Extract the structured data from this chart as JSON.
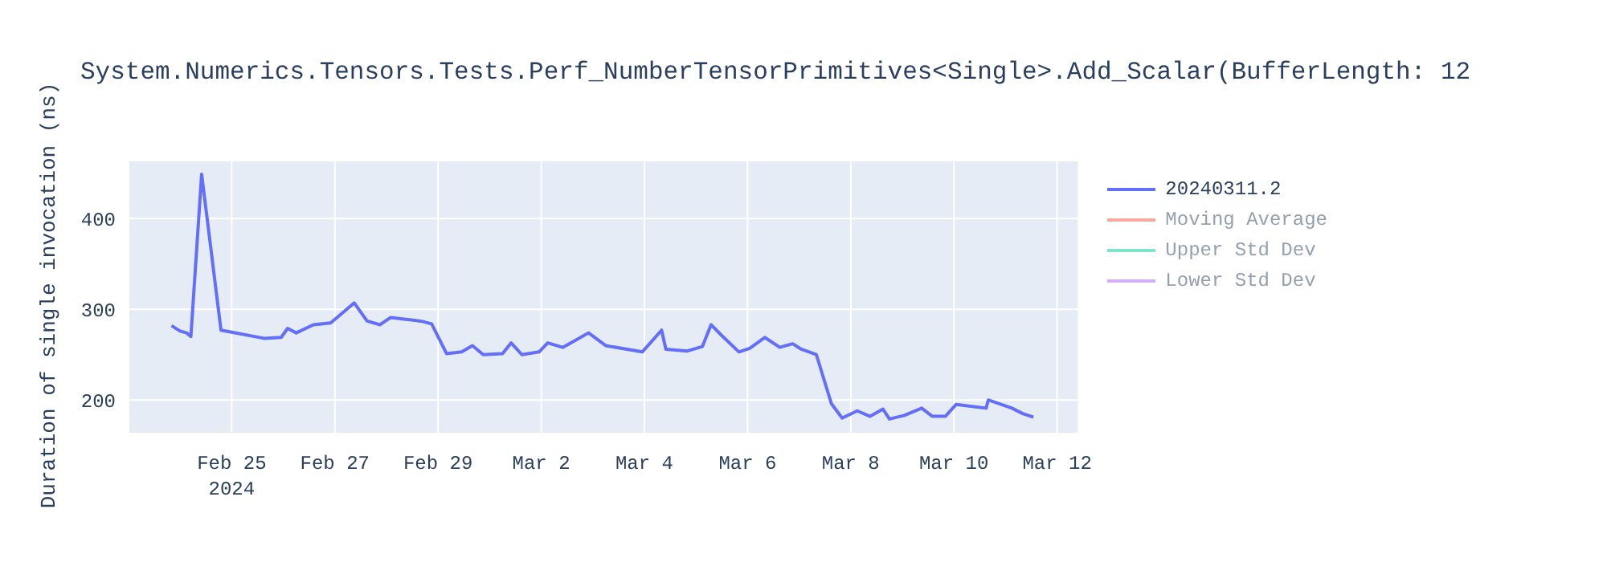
{
  "chart_data": {
    "type": "line",
    "title": "System.Numerics.Tensors.Tests.Perf_NumberTensorPrimitives<Single>.Add_Scalar(BufferLength: 12",
    "ylabel": "Duration of single invocation (ns)",
    "x": [
      "2024-02-23T20:00",
      "2024-02-24T00:00",
      "2024-02-24T03:00",
      "2024-02-24T05:00",
      "2024-02-24T10:00",
      "2024-02-24T19:00",
      "2024-02-25T15:00",
      "2024-02-25T23:00",
      "2024-02-26T02:00",
      "2024-02-26T06:00",
      "2024-02-26T14:00",
      "2024-02-26T22:00",
      "2024-02-27T01:00",
      "2024-02-27T09:00",
      "2024-02-27T15:00",
      "2024-02-27T21:00",
      "2024-02-28T02:00",
      "2024-02-28T09:00",
      "2024-02-28T16:00",
      "2024-02-28T21:00",
      "2024-02-29T04:00",
      "2024-02-29T11:00",
      "2024-02-29T16:00",
      "2024-02-29T21:00",
      "2024-03-01T06:00",
      "2024-03-01T10:00",
      "2024-03-01T15:00",
      "2024-03-01T23:00",
      "2024-03-02T03:00",
      "2024-03-02T10:00",
      "2024-03-02T16:00",
      "2024-03-02T22:00",
      "2024-03-03T06:00",
      "2024-03-03T23:00",
      "2024-03-04T08:00",
      "2024-03-04T10:00",
      "2024-03-04T20:00",
      "2024-03-05T03:00",
      "2024-03-05T07:00",
      "2024-03-05T12:00",
      "2024-03-05T20:00",
      "2024-03-06T01:00",
      "2024-03-06T08:00",
      "2024-03-06T15:00",
      "2024-03-06T21:00",
      "2024-03-07T01:00",
      "2024-03-07T08:00",
      "2024-03-07T15:00",
      "2024-03-07T20:00",
      "2024-03-08T03:00",
      "2024-03-08T09:00",
      "2024-03-08T15:00",
      "2024-03-08T18:00",
      "2024-03-09T01:00",
      "2024-03-09T09:00",
      "2024-03-09T14:00",
      "2024-03-09T20:00",
      "2024-03-10T01:00",
      "2024-03-10T15:00",
      "2024-03-10T16:00",
      "2024-03-11T03:00",
      "2024-03-11T08:00",
      "2024-03-11T13:00"
    ],
    "series": [
      {
        "name": "20240311.2",
        "color": "#636efa",
        "values": [
          282,
          276,
          274,
          270,
          449,
          277,
          268,
          269,
          279,
          274,
          283,
          285,
          291,
          307,
          287,
          283,
          291,
          289,
          287,
          284,
          251,
          253,
          260,
          250,
          251,
          263,
          250,
          253,
          263,
          258,
          266,
          274,
          260,
          253,
          277,
          256,
          254,
          259,
          283,
          271,
          253,
          257,
          269,
          258,
          262,
          256,
          250,
          196,
          180,
          188,
          182,
          190,
          179,
          183,
          191,
          182,
          182,
          195,
          191,
          200,
          191,
          185,
          181
        ]
      },
      {
        "name": "Moving Average",
        "color": "#ef553b",
        "values": [
          null,
          null,
          null,
          null,
          null,
          null,
          null,
          null,
          null,
          null,
          null,
          null,
          null,
          null,
          null,
          null,
          null,
          null,
          null,
          null,
          null,
          null,
          null,
          null,
          null,
          null,
          null,
          null,
          null,
          null,
          null,
          null,
          null,
          null,
          null,
          null,
          null,
          null,
          null,
          null,
          null,
          null,
          null,
          null,
          null,
          null,
          null,
          null,
          null,
          null,
          null,
          null,
          null,
          null,
          null,
          null,
          null,
          null,
          null,
          null,
          null,
          null,
          null
        ]
      },
      {
        "name": "Upper Std Dev",
        "color": "#00cc96",
        "values": [
          null,
          null,
          null,
          null,
          null,
          null,
          null,
          null,
          null,
          null,
          null,
          null,
          null,
          null,
          null,
          null,
          null,
          null,
          null,
          null,
          null,
          null,
          null,
          null,
          null,
          null,
          null,
          null,
          null,
          null,
          null,
          null,
          null,
          null,
          null,
          null,
          null,
          null,
          null,
          null,
          null,
          null,
          null,
          null,
          null,
          null,
          null,
          null,
          null,
          null,
          null,
          null,
          null,
          null,
          null,
          null,
          null,
          null,
          null,
          null,
          null,
          null,
          null
        ]
      },
      {
        "name": "Lower Std Dev",
        "color": "#ab63fa",
        "values": [
          null,
          null,
          null,
          null,
          null,
          null,
          null,
          null,
          null,
          null,
          null,
          null,
          null,
          null,
          null,
          null,
          null,
          null,
          null,
          null,
          null,
          null,
          null,
          null,
          null,
          null,
          null,
          null,
          null,
          null,
          null,
          null,
          null,
          null,
          null,
          null,
          null,
          null,
          null,
          null,
          null,
          null,
          null,
          null,
          null,
          null,
          null,
          null,
          null,
          null,
          null,
          null,
          null,
          null,
          null,
          null,
          null,
          null,
          null,
          null,
          null,
          null,
          null
        ]
      }
    ],
    "xlim": [
      "2024-02-23T00:00",
      "2024-03-12T10:00"
    ],
    "xticks": [
      {
        "value": "2024-02-25",
        "label": "Feb 25\n2024"
      },
      {
        "value": "2024-02-27",
        "label": "Feb 27"
      },
      {
        "value": "2024-02-29",
        "label": "Feb 29"
      },
      {
        "value": "2024-03-02",
        "label": "Mar 2"
      },
      {
        "value": "2024-03-04",
        "label": "Mar 4"
      },
      {
        "value": "2024-03-06",
        "label": "Mar 6"
      },
      {
        "value": "2024-03-08",
        "label": "Mar 8"
      },
      {
        "value": "2024-03-10",
        "label": "Mar 10"
      },
      {
        "value": "2024-03-12",
        "label": "Mar 12"
      }
    ],
    "ylim": [
      163,
      464
    ],
    "yticks": [
      200,
      300,
      400
    ],
    "grid": true,
    "legend": "top right",
    "line_style": "solid"
  }
}
